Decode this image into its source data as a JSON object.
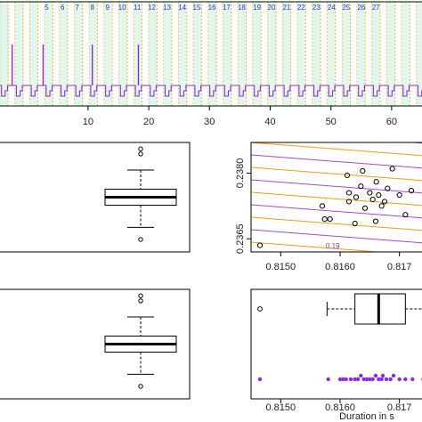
{
  "colors": {
    "frame": "#000000",
    "signal": "#8a2be2",
    "band_orange": "#f5b041",
    "band_green": "#c8f0dc",
    "cycle_label": "#2a36c8",
    "contour_orange": "#f39c12",
    "contour_purple": "#a64ac9",
    "points_purple": "#8a2be2"
  },
  "chart_data": [
    {
      "id": "signal",
      "type": "line",
      "x_ticks": [
        10,
        20,
        30,
        40,
        50,
        60
      ],
      "xlim": [
        -4.5,
        65
      ],
      "cycle_labels": [
        "5",
        "6",
        "7",
        "8",
        "9",
        "10",
        "11",
        "12",
        "13",
        "14",
        "15",
        "16",
        "17",
        "18",
        "19",
        "20",
        "21",
        "22",
        "23",
        "24",
        "25",
        "26",
        "27"
      ],
      "cycle_label_x": [
        3.2,
        5.8,
        8.2,
        10.7,
        13.2,
        15.6,
        18.1,
        20.5,
        23.0,
        25.5,
        27.9,
        30.4,
        32.8,
        35.3,
        37.8,
        40.2,
        42.7,
        45.1,
        47.6,
        50.1,
        52.5,
        55.0,
        57.4
      ],
      "cycle_period": 2.45,
      "spikes_x": [
        -2.5,
        2.6,
        10.7,
        18.3
      ],
      "grid": false
    },
    {
      "id": "box-left-top",
      "type": "box",
      "median": 0.5,
      "q1": 0.42,
      "q3": 0.58,
      "whisker_low": 0.2,
      "whisker_high": 0.77,
      "outliers": [
        0.08,
        0.93,
        0.98
      ]
    },
    {
      "id": "scatter-contour",
      "type": "scatter",
      "xlim": [
        0.8145,
        0.8175
      ],
      "ylim": [
        0.2362,
        0.2387
      ],
      "x_ticks": [
        "0.8150",
        "0.8160",
        "0.817"
      ],
      "x_tick_values": [
        0.815,
        0.816,
        0.817
      ],
      "y_ticks": [
        "0.2365",
        "0.2380"
      ],
      "y_tick_values": [
        0.2365,
        0.238
      ],
      "contour_label": "0.19",
      "points": [
        [
          0.81465,
          0.23635
        ],
        [
          0.8157,
          0.23725
        ],
        [
          0.81574,
          0.23695
        ],
        [
          0.81583,
          0.23695
        ],
        [
          0.81612,
          0.23795
        ],
        [
          0.81615,
          0.23755
        ],
        [
          0.81615,
          0.23735
        ],
        [
          0.81625,
          0.23685
        ],
        [
          0.81627,
          0.23745
        ],
        [
          0.81635,
          0.2377
        ],
        [
          0.81638,
          0.23805
        ],
        [
          0.81642,
          0.2372
        ],
        [
          0.8165,
          0.23755
        ],
        [
          0.81655,
          0.2374
        ],
        [
          0.8166,
          0.2369
        ],
        [
          0.81661,
          0.2378
        ],
        [
          0.81665,
          0.2375
        ],
        [
          0.8167,
          0.23725
        ],
        [
          0.81675,
          0.23735
        ],
        [
          0.8168,
          0.23765
        ],
        [
          0.81688,
          0.2381
        ],
        [
          0.817,
          0.2375
        ],
        [
          0.8171,
          0.23705
        ],
        [
          0.8172,
          0.2376
        ],
        [
          0.8175,
          0.23845
        ],
        [
          0.81745,
          0.2367
        ]
      ]
    },
    {
      "id": "box-left-bottom",
      "type": "box",
      "median": 0.5,
      "q1": 0.42,
      "q3": 0.58,
      "whisker_low": 0.2,
      "whisker_high": 0.77,
      "outliers": [
        0.08,
        0.93,
        0.98
      ]
    },
    {
      "id": "duration-box-strip",
      "type": "box",
      "xlim": [
        0.8145,
        0.8175
      ],
      "x_ticks": [
        "0.8150",
        "0.8160",
        "0.817"
      ],
      "x_tick_values": [
        0.815,
        0.816,
        0.817
      ],
      "xlabel": "Duration in s",
      "median": 0.81665,
      "q1": 0.81625,
      "q3": 0.8171,
      "whisker_low": 0.81578,
      "whisker_high": 0.8175,
      "outliers": [
        0.81465
      ],
      "strip": [
        0.81465,
        0.8158,
        0.816,
        0.81605,
        0.8161,
        0.81618,
        0.81625,
        0.8163,
        0.81635,
        0.8164,
        0.81645,
        0.8165,
        0.81655,
        0.8166,
        0.81665,
        0.8167,
        0.81672,
        0.81678,
        0.81685,
        0.8169,
        0.817,
        0.8171,
        0.81722,
        0.8174
      ]
    }
  ]
}
